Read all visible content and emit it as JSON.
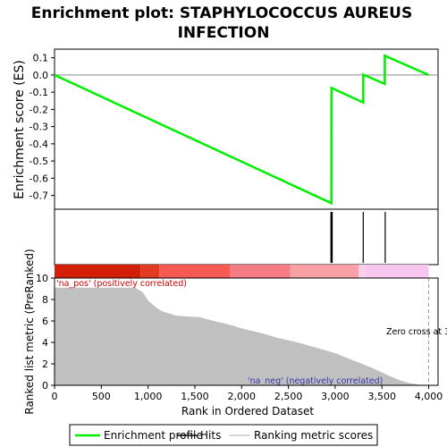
{
  "chart_data": {
    "type": "line",
    "title_line1": "Enrichment plot: STAPHYLOCOCCUS AUREUS",
    "title_line2": "INFECTION",
    "n_genes": 4000,
    "es_panel": {
      "ylabel": "Enrichment score (ES)",
      "ylim": [
        -0.78,
        0.15
      ],
      "yticks": [
        0.1,
        0.0,
        -0.1,
        -0.2,
        -0.3,
        -0.4,
        -0.5,
        -0.6,
        -0.7
      ],
      "ytick_labels": [
        "0.1",
        "0.0",
        "-0.1",
        "-0.2",
        "-0.3",
        "-0.4",
        "-0.5",
        "-0.6",
        "-0.7"
      ],
      "series": [
        {
          "name": "Enrichment profile",
          "color": "#00ee00",
          "points": [
            [
              0,
              0.0
            ],
            [
              2960,
              -0.745
            ],
            [
              2961,
              -0.075
            ],
            [
              3300,
              -0.16
            ],
            [
              3301,
              0.002
            ],
            [
              3530,
              -0.052
            ],
            [
              3531,
              0.112
            ],
            [
              4000,
              0.0
            ]
          ]
        }
      ]
    },
    "hits": {
      "positions": [
        2955,
        2962,
        2968,
        3300,
        3535
      ],
      "color": "#000000"
    },
    "color_bar": {
      "segments": [
        {
          "start": 0,
          "end": 920,
          "color": "#d41f08"
        },
        {
          "start": 920,
          "end": 1120,
          "color": "#e33a24"
        },
        {
          "start": 1120,
          "end": 1880,
          "color": "#f65a52"
        },
        {
          "start": 1880,
          "end": 2520,
          "color": "#f57c84"
        },
        {
          "start": 2520,
          "end": 3250,
          "color": "#f8a0a4"
        },
        {
          "start": 3250,
          "end": 3330,
          "color": "#f8d0ec"
        },
        {
          "start": 3330,
          "end": 4000,
          "color": "#f6c6ee"
        }
      ]
    },
    "rank_panel": {
      "ylabel": "Ranked list metric (PreRanked)",
      "xlabel": "Rank in Ordered Dataset",
      "ylim": [
        0,
        10
      ],
      "xlim": [
        0,
        4100
      ],
      "yticks": [
        0,
        2,
        4,
        6,
        8,
        10
      ],
      "ytick_labels": [
        "0",
        "2",
        "4",
        "6",
        "8",
        "10"
      ],
      "xticks": [
        0,
        500,
        1000,
        1500,
        2000,
        2500,
        3000,
        3500,
        4000
      ],
      "xtick_labels": [
        "0",
        "500",
        "1,000",
        "1,500",
        "2,000",
        "2,500",
        "3,000",
        "3,500",
        "4,000"
      ],
      "fill_color": "#c0c0c0",
      "profile": [
        [
          0,
          9.1
        ],
        [
          100,
          9.1
        ],
        [
          860,
          9.1
        ],
        [
          940,
          8.7
        ],
        [
          1000,
          7.9
        ],
        [
          1080,
          7.3
        ],
        [
          1150,
          6.9
        ],
        [
          1300,
          6.5
        ],
        [
          1450,
          6.4
        ],
        [
          1550,
          6.35
        ],
        [
          1700,
          6.0
        ],
        [
          1850,
          5.7
        ],
        [
          2000,
          5.3
        ],
        [
          2200,
          4.9
        ],
        [
          2400,
          4.4
        ],
        [
          2600,
          4.0
        ],
        [
          2800,
          3.5
        ],
        [
          3000,
          3.0
        ],
        [
          3200,
          2.3
        ],
        [
          3400,
          1.6
        ],
        [
          3500,
          1.2
        ],
        [
          3600,
          0.8
        ],
        [
          3700,
          0.45
        ],
        [
          3800,
          0.2
        ],
        [
          3900,
          0.07
        ],
        [
          4000,
          0.0
        ]
      ],
      "pos_label": "'na_pos' (positively correlated)",
      "neg_label": "'na_neg' (negatively correlated)",
      "zero_cross_label": "Zero cross at 3",
      "zero_cross_x": 4000
    },
    "legend": [
      {
        "label": "Enrichment profile",
        "color": "#00ee00"
      },
      {
        "label": "Hits",
        "color": "#000000"
      },
      {
        "label": "Ranking metric scores",
        "color": "#cccccc"
      }
    ]
  }
}
